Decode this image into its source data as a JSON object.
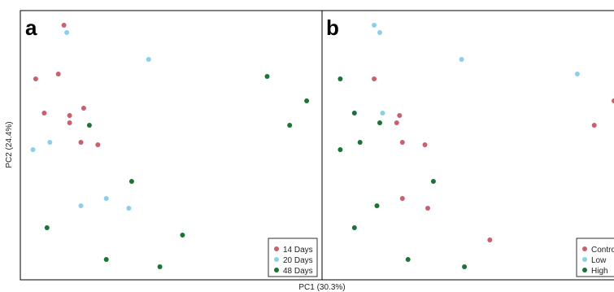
{
  "figure": {
    "xlabel": "PC1 (30.3%)",
    "ylabel": "PC2 (24.4%)"
  },
  "chart_data": [
    {
      "type": "scatter",
      "panel_label": "a",
      "legend_position": "bottom-right",
      "grid": false,
      "xlim": [
        0,
        1
      ],
      "ylim": [
        0,
        1
      ],
      "series": [
        {
          "name": "14 Days",
          "color": "#c9606e",
          "x": [
            0.12,
            0.02,
            0.1,
            0.05,
            0.14,
            0.19,
            0.14,
            0.18,
            0.24
          ],
          "y": [
            0.98,
            0.76,
            0.78,
            0.62,
            0.61,
            0.64,
            0.58,
            0.5,
            0.49
          ]
        },
        {
          "name": "20 Days",
          "color": "#8ccfe8",
          "x": [
            0.13,
            0.42,
            0.07,
            0.01,
            0.27,
            0.18,
            0.35
          ],
          "y": [
            0.95,
            0.84,
            0.5,
            0.47,
            0.27,
            0.24,
            0.23
          ]
        },
        {
          "name": "48 Days",
          "color": "#1a7436",
          "x": [
            0.84,
            0.98,
            0.92,
            0.21,
            0.36,
            0.06,
            0.54,
            0.27,
            0.46
          ],
          "y": [
            0.77,
            0.67,
            0.57,
            0.57,
            0.34,
            0.15,
            0.12,
            0.02,
            -0.01
          ]
        }
      ],
      "legend": [
        "14 Days",
        "20 Days",
        "48 Days"
      ]
    },
    {
      "type": "scatter",
      "panel_label": "b",
      "legend_position": "bottom-right",
      "grid": false,
      "xlim": [
        0,
        1
      ],
      "ylim": [
        0,
        1
      ],
      "series": [
        {
          "name": "Control",
          "color": "#c9606e",
          "x": [
            0.15,
            1.0,
            0.93,
            0.24,
            0.23,
            0.25,
            0.33,
            0.25,
            0.34,
            0.56
          ],
          "y": [
            0.76,
            0.67,
            0.57,
            0.61,
            0.58,
            0.5,
            0.49,
            0.27,
            0.23,
            0.1
          ]
        },
        {
          "name": "Low",
          "color": "#8ccfe8",
          "x": [
            0.15,
            0.17,
            0.46,
            0.87,
            0.18
          ],
          "y": [
            0.98,
            0.95,
            0.84,
            0.78,
            0.62
          ]
        },
        {
          "name": "High",
          "color": "#1a7436",
          "x": [
            0.03,
            0.08,
            0.17,
            0.1,
            0.03,
            0.36,
            0.16,
            0.08,
            0.27,
            0.47
          ],
          "y": [
            0.76,
            0.62,
            0.58,
            0.5,
            0.47,
            0.34,
            0.24,
            0.15,
            0.02,
            -0.01
          ]
        }
      ],
      "legend": [
        "Control",
        "Low",
        "High"
      ]
    }
  ]
}
